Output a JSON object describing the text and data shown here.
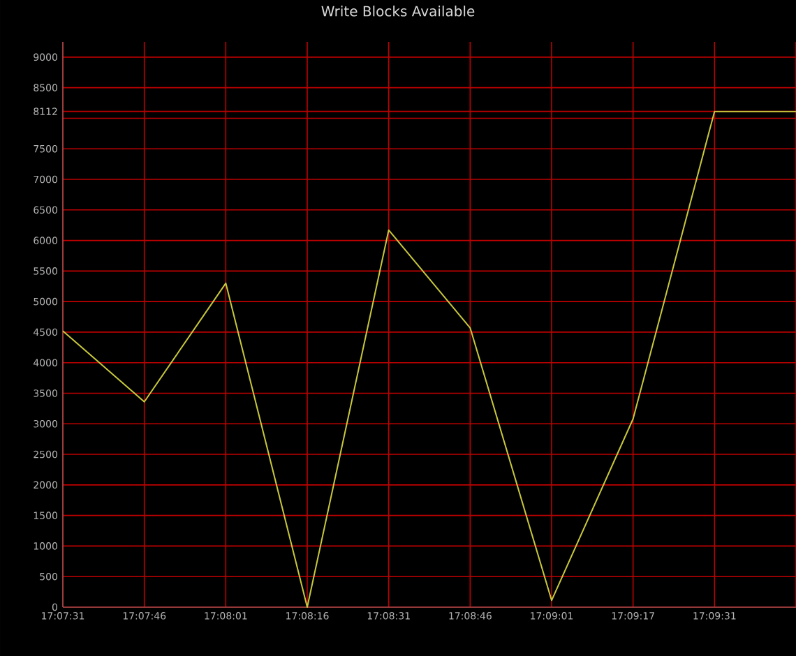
{
  "chart_data": {
    "type": "line",
    "title": "Write Blocks Available",
    "categories": [
      "17:07:31",
      "17:07:46",
      "17:08:01",
      "17:08:16",
      "17:08:31",
      "17:08:46",
      "17:09:01",
      "17:09:17",
      "17:09:31",
      null
    ],
    "series": [
      {
        "color": "#c8c83c",
        "values": [
          4520,
          3360,
          5300,
          0,
          6170,
          4570,
          110,
          3080,
          8112,
          8112
        ]
      }
    ],
    "ylim": [
      0,
      9250
    ],
    "yticks": [
      0,
      500,
      1000,
      1500,
      2000,
      2500,
      3000,
      3500,
      4000,
      4500,
      5000,
      5500,
      6000,
      6500,
      7000,
      7500,
      {
        "value": 8000,
        "label": null
      },
      {
        "value": 8112,
        "label": "8112"
      },
      8500,
      9000
    ],
    "grid": true,
    "marker": "none",
    "line_style": "solid"
  }
}
